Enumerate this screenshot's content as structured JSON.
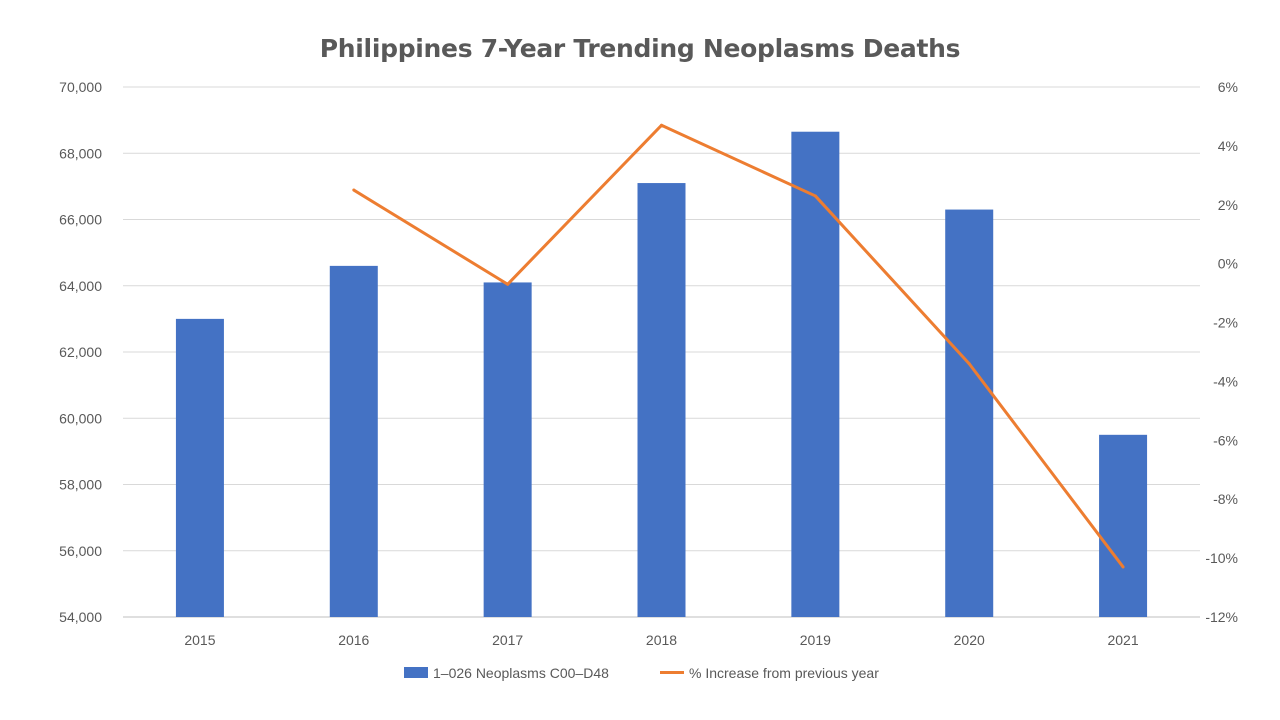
{
  "chart_data": {
    "type": "bar",
    "title": "Philippines 7-Year Trending Neoplasms Deaths",
    "categories": [
      "2015",
      "2016",
      "2017",
      "2018",
      "2019",
      "2020",
      "2021"
    ],
    "series": [
      {
        "name": "1–026 Neoplasms C00–D48",
        "type": "bar",
        "axis": "left",
        "color": "#4472C4",
        "values": [
          63000,
          64600,
          64100,
          67100,
          68650,
          66300,
          59500
        ]
      },
      {
        "name": "% Increase from previous year",
        "type": "line",
        "axis": "right",
        "color": "#ED7D31",
        "values": [
          null,
          2.5,
          -0.7,
          4.7,
          2.3,
          -3.4,
          -10.3
        ]
      }
    ],
    "y_left": {
      "min": 54000,
      "max": 70000,
      "ticks": [
        "54,000",
        "56,000",
        "58,000",
        "60,000",
        "62,000",
        "64,000",
        "66,000",
        "68,000",
        "70,000"
      ]
    },
    "y_right": {
      "min": -12,
      "max": 6,
      "ticks": [
        "-12%",
        "-10%",
        "-8%",
        "-6%",
        "-4%",
        "-2%",
        "0%",
        "2%",
        "4%",
        "6%"
      ]
    },
    "grid": true,
    "legend_position": "bottom"
  }
}
